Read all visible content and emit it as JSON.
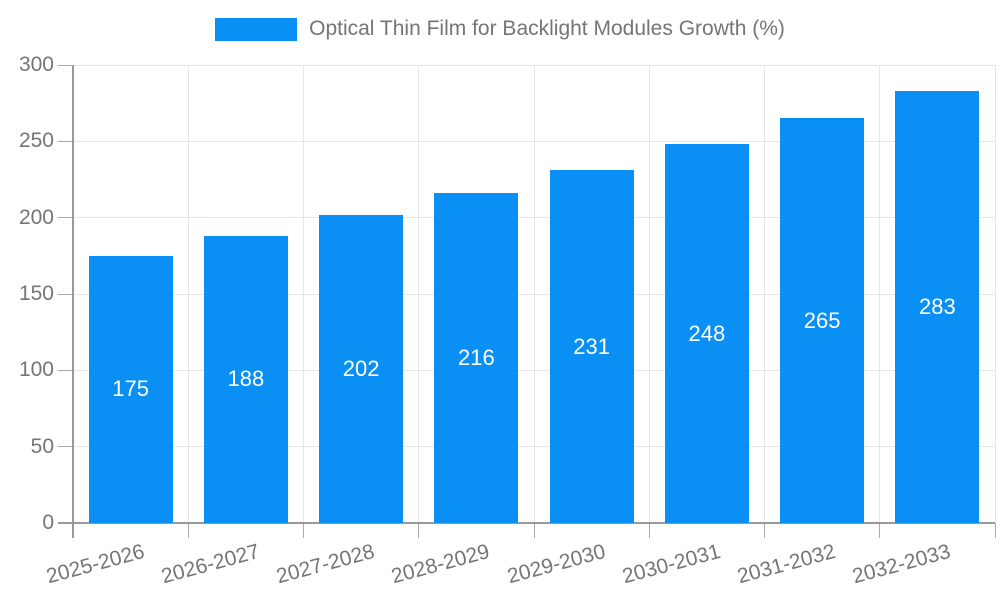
{
  "chart_data": {
    "type": "bar",
    "title": "Optical Thin Film for Backlight Modules Growth (%)",
    "legend_entries": [
      "Optical Thin Film for Backlight Modules Growth (%)"
    ],
    "legend_position": "top-center",
    "categories": [
      "2025-2026",
      "2026-2027",
      "2027-2028",
      "2028-2029",
      "2029-2030",
      "2030-2031",
      "2031-2032",
      "2032-2033"
    ],
    "values": [
      175,
      188,
      202,
      216,
      231,
      248,
      265,
      283
    ],
    "bar_value_labels": [
      "175",
      "188",
      "202",
      "216",
      "231",
      "248",
      "265",
      "283"
    ],
    "xlabel": "",
    "ylabel": "",
    "ylim": [
      0,
      300
    ],
    "yticks": [
      0,
      50,
      100,
      150,
      200,
      250,
      300
    ],
    "grid": true,
    "x_tick_label_rotation_deg": -15,
    "colors": {
      "bar": "#0a90f4",
      "axis": "#999999",
      "tick": "#aaaaaa",
      "grid": "#e6e6e6",
      "text": "#757575",
      "bar_label": "#ffffff",
      "background": "#ffffff"
    }
  }
}
